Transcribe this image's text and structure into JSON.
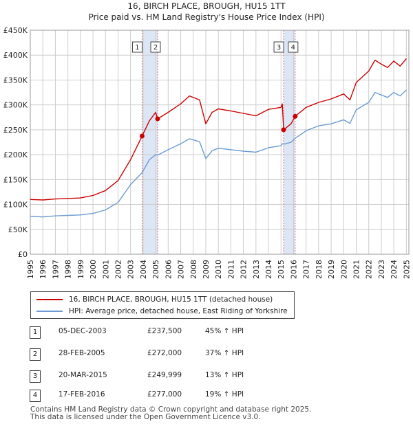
{
  "title_line1": "16, BIRCH PLACE, BROUGH, HU15 1TT",
  "title_line2": "Price paid vs. HM Land Registry's House Price Index (HPI)",
  "colors": {
    "property": "#cc0000",
    "hpi": "#6b9bd2",
    "band": "#dde6f5",
    "marker_line": "#e07070",
    "grid": "#cccccc"
  },
  "chart_data": {
    "type": "line",
    "x_range": [
      1995,
      2025.2
    ],
    "ylim": [
      0,
      450000
    ],
    "yticks": [
      0,
      50000,
      100000,
      150000,
      200000,
      250000,
      300000,
      350000,
      400000,
      450000
    ],
    "ytick_labels": [
      "£0",
      "£50K",
      "£100K",
      "£150K",
      "£200K",
      "£250K",
      "£300K",
      "£350K",
      "£400K",
      "£450K"
    ],
    "xticks": [
      1995,
      1996,
      1997,
      1998,
      1999,
      2000,
      2001,
      2002,
      2003,
      2004,
      2005,
      2006,
      2007,
      2008,
      2009,
      2010,
      2011,
      2012,
      2013,
      2014,
      2015,
      2016,
      2017,
      2018,
      2019,
      2020,
      2021,
      2022,
      2023,
      2024,
      2025
    ],
    "xtick_labels": [
      "1995",
      "1996",
      "1997",
      "1998",
      "1999",
      "2000",
      "2001",
      "2002",
      "2003",
      "2004",
      "2005",
      "2006",
      "2007",
      "2008",
      "2009",
      "2010",
      "2011",
      "2012",
      "2013",
      "2014",
      "2015",
      "2016",
      "2017",
      "2018",
      "2019",
      "2020",
      "2021",
      "2022",
      "2023",
      "2024",
      "2025"
    ],
    "shaded_bands": [
      [
        2003.92,
        2005.16
      ],
      [
        2015.21,
        2016.13
      ]
    ],
    "series": [
      {
        "name": "16, BIRCH PLACE, BROUGH, HU15 1TT (detached house)",
        "x": [
          1995,
          1996,
          1997,
          1998,
          1999,
          2000,
          2001,
          2002,
          2003,
          2003.92,
          2004.5,
          2005.0,
          2005.16,
          2006,
          2007,
          2007.7,
          2008.5,
          2009.0,
          2009.5,
          2010,
          2011,
          2012,
          2013,
          2014,
          2015.0,
          2015.1,
          2015.21,
          2015.8,
          2016.13,
          2017,
          2018,
          2019,
          2020,
          2020.5,
          2021,
          2022,
          2022.5,
          2023,
          2023.5,
          2024,
          2024.5,
          2025
        ],
        "values": [
          110000,
          109000,
          111000,
          112000,
          113000,
          118000,
          128000,
          148000,
          190000,
          237500,
          268000,
          285000,
          272000,
          285000,
          302000,
          318000,
          310000,
          262000,
          285000,
          292000,
          288000,
          283000,
          278000,
          291000,
          295000,
          302000,
          249999,
          262000,
          277000,
          295000,
          305000,
          312000,
          322000,
          310000,
          345000,
          368000,
          390000,
          382000,
          375000,
          388000,
          378000,
          393000
        ]
      },
      {
        "name": "HPI: Average price, detached house, East Riding of Yorkshire",
        "x": [
          1995,
          1996,
          1997,
          1998,
          1999,
          2000,
          2001,
          2002,
          2003,
          2003.92,
          2004.5,
          2005.0,
          2005.16,
          2006,
          2007,
          2007.7,
          2008.5,
          2009.0,
          2009.5,
          2010,
          2011,
          2012,
          2013,
          2014,
          2015.0,
          2015.1,
          2015.21,
          2015.8,
          2016.13,
          2017,
          2018,
          2019,
          2020,
          2020.5,
          2021,
          2022,
          2022.5,
          2023,
          2023.5,
          2024,
          2024.5,
          2025
        ],
        "values": [
          76000,
          75000,
          77000,
          78000,
          79000,
          82000,
          89000,
          104000,
          140000,
          164000,
          190000,
          200000,
          199000,
          210000,
          222000,
          232000,
          226000,
          192000,
          208000,
          213000,
          210000,
          207000,
          205000,
          214000,
          218000,
          222000,
          221000,
          225000,
          233000,
          248000,
          258000,
          262000,
          270000,
          263000,
          290000,
          305000,
          325000,
          320000,
          315000,
          325000,
          318000,
          330000
        ]
      }
    ],
    "sale_markers": [
      {
        "label": "1",
        "x": 2003.92,
        "value": 237500
      },
      {
        "label": "2",
        "x": 2005.16,
        "value": 272000
      },
      {
        "label": "3",
        "x": 2015.21,
        "value": 249999
      },
      {
        "label": "4",
        "x": 2016.13,
        "value": 277000
      }
    ]
  },
  "legend": {
    "property_label": "16, BIRCH PLACE, BROUGH, HU15 1TT (detached house)",
    "hpi_label": "HPI: Average price, detached house, East Riding of Yorkshire"
  },
  "transactions": [
    {
      "num": "1",
      "date": "05-DEC-2003",
      "price": "£237,500",
      "hpi": "45% ↑ HPI"
    },
    {
      "num": "2",
      "date": "28-FEB-2005",
      "price": "£272,000",
      "hpi": "37% ↑ HPI"
    },
    {
      "num": "3",
      "date": "20-MAR-2015",
      "price": "£249,999",
      "hpi": "13% ↑ HPI"
    },
    {
      "num": "4",
      "date": "17-FEB-2016",
      "price": "£277,000",
      "hpi": "19% ↑ HPI"
    }
  ],
  "footer_line1": "Contains HM Land Registry data © Crown copyright and database right 2025.",
  "footer_line2": "This data is licensed under the Open Government Licence v3.0."
}
